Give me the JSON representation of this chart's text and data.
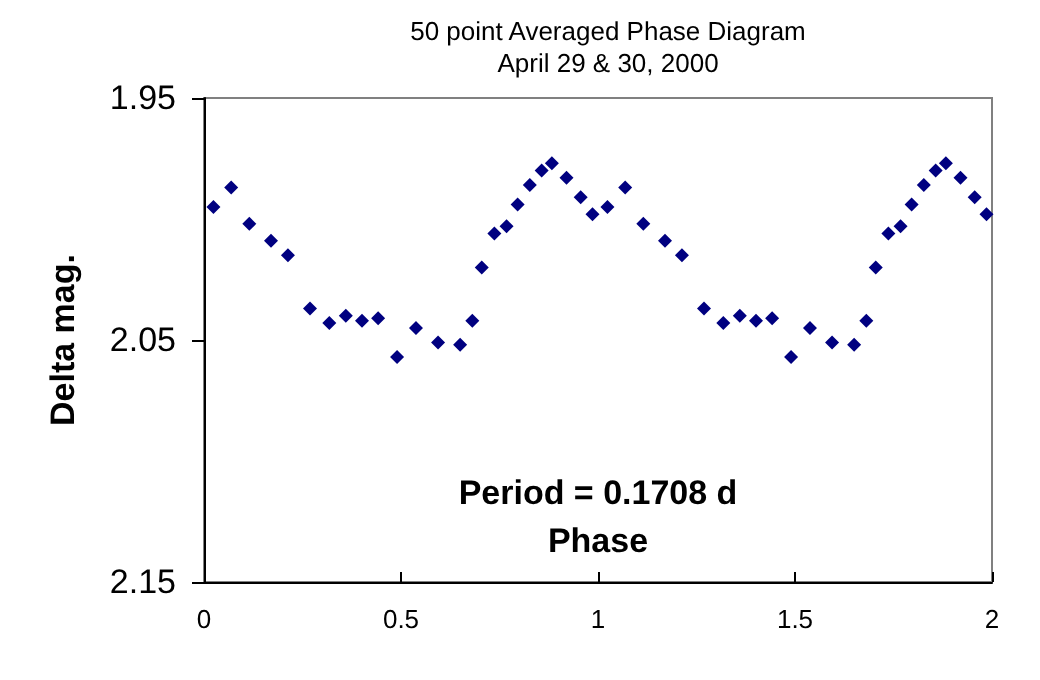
{
  "chart_data": {
    "type": "scatter",
    "title": "50 point Averaged Phase Diagram",
    "subtitle": "April 29 & 30, 2000",
    "xlabel": "Phase",
    "ylabel": "Delta mag.",
    "annotations": [
      "Period = 0.1708 d"
    ],
    "x": [
      0.024,
      0.069,
      0.115,
      0.17,
      0.213,
      0.269,
      0.318,
      0.36,
      0.401,
      0.442,
      0.49,
      0.538,
      0.594,
      0.65,
      0.681,
      0.705,
      0.737,
      0.768,
      0.796,
      0.827,
      0.857,
      0.883,
      0.92,
      0.956,
      0.986,
      1.024,
      1.069,
      1.115,
      1.17,
      1.213,
      1.269,
      1.318,
      1.36,
      1.401,
      1.442,
      1.49,
      1.538,
      1.594,
      1.65,
      1.681,
      1.705,
      1.737,
      1.768,
      1.796,
      1.827,
      1.857,
      1.883,
      1.92,
      1.956,
      1.986
    ],
    "series": [
      {
        "color": "#000080",
        "values": [
          1.995,
          1.987,
          2.002,
          2.009,
          2.015,
          2.037,
          2.043,
          2.04,
          2.042,
          2.041,
          2.057,
          2.045,
          2.051,
          2.052,
          2.042,
          2.02,
          2.006,
          2.003,
          1.994,
          1.986,
          1.98,
          1.977,
          1.983,
          1.991,
          1.998,
          1.995,
          1.987,
          2.002,
          2.009,
          2.015,
          2.037,
          2.043,
          2.04,
          2.042,
          2.041,
          2.057,
          2.045,
          2.051,
          2.052,
          2.042,
          2.02,
          2.006,
          2.003,
          1.994,
          1.986,
          1.98,
          1.977,
          1.983,
          1.991,
          1.998
        ]
      }
    ],
    "xlim": [
      0,
      2
    ],
    "xticks": [
      0,
      0.5,
      1,
      1.5,
      2
    ],
    "ylim": [
      2.15,
      1.95
    ],
    "yticks": [
      1.95,
      2.05,
      2.15
    ],
    "marker": "diamond",
    "grid": false
  }
}
